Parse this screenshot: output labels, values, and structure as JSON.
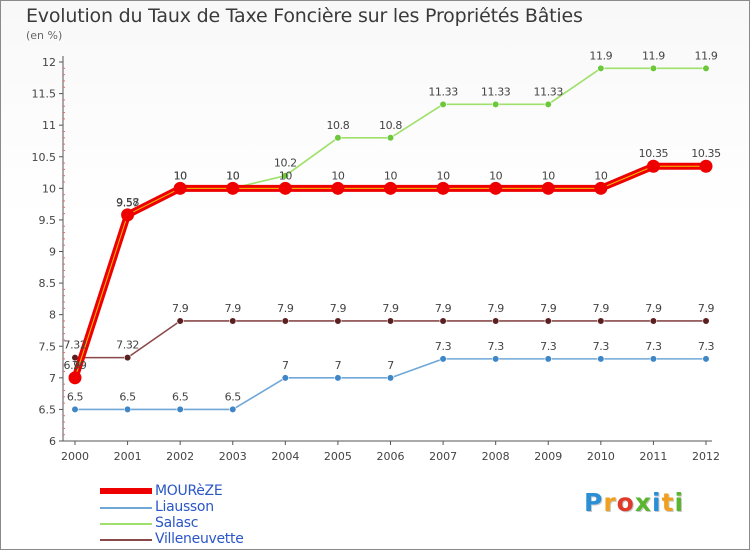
{
  "page": {
    "title": "Evolution du Taux de Taxe Foncière sur les Propriétés Bâties",
    "subtitle": "(en %)"
  },
  "chart_data": {
    "type": "line",
    "title": "Evolution du Taux de Taxe Foncière sur les Propriétés Bâties",
    "subtitle": "(en %)",
    "xlabel": "",
    "ylabel": "",
    "x": [
      "2000",
      "2001",
      "2002",
      "2003",
      "2004",
      "2005",
      "2006",
      "2007",
      "2008",
      "2009",
      "2010",
      "2011",
      "2012"
    ],
    "ylim": [
      6,
      12
    ],
    "yticks": [
      "6",
      "6.5",
      "7",
      "7.5",
      "8",
      "8.5",
      "9",
      "9.5",
      "10",
      "10.5",
      "11",
      "11.5",
      "12"
    ],
    "grid": false,
    "legend_position": "bottom-left",
    "series": [
      {
        "name": "MOURèZE",
        "color": "#ee0000",
        "marker": "#ee0000",
        "emphasis": true,
        "values": [
          7,
          9.58,
          10,
          10,
          10,
          10,
          10,
          10,
          10,
          10,
          10,
          10.35,
          10.35
        ],
        "labels": [
          "6.99",
          "9.58",
          "10",
          "10",
          "10",
          "10",
          "10",
          "10",
          "10",
          "10",
          "10",
          "10.35",
          "10.35"
        ]
      },
      {
        "name": "Liausson",
        "color": "#6fa7d7",
        "marker": "#3f86c7",
        "values": [
          6.5,
          6.5,
          6.5,
          6.5,
          7,
          7,
          7,
          7.3,
          7.3,
          7.3,
          7.3,
          7.3,
          7.3
        ],
        "labels": [
          "6.5",
          "6.5",
          "6.5",
          "6.5",
          "7",
          "7",
          "7",
          "7.3",
          "7.3",
          "7.3",
          "7.3",
          "7.3",
          "7.3"
        ]
      },
      {
        "name": "Salasc",
        "color": "#9fe06a",
        "marker": "#6cc73a",
        "values": [
          7,
          9.57,
          10,
          10,
          10.2,
          10.8,
          10.8,
          11.33,
          11.33,
          11.33,
          11.9,
          11.9,
          11.9
        ],
        "labels": [
          "7",
          "9.57",
          "10",
          "10",
          "10.2",
          "10.8",
          "10.8",
          "11.33",
          "11.33",
          "11.33",
          "11.9",
          "11.9",
          "11.9"
        ]
      },
      {
        "name": "Villeneuvette",
        "color": "#8a4a4a",
        "marker": "#5c1f1f",
        "values": [
          7.32,
          7.32,
          7.9,
          7.9,
          7.9,
          7.9,
          7.9,
          7.9,
          7.9,
          7.9,
          7.9,
          7.9,
          7.9
        ],
        "labels": [
          "7.32",
          "7.32",
          "7.9",
          "7.9",
          "7.9",
          "7.9",
          "7.9",
          "7.9",
          "7.9",
          "7.9",
          "7.9",
          "7.9",
          "7.9"
        ]
      }
    ]
  },
  "logo": {
    "letters": [
      "P",
      "r",
      "o",
      "x",
      "i",
      "t",
      "i"
    ],
    "colors": [
      "#2a8fd4",
      "#f0a020",
      "#e03a2a",
      "#5ab52f",
      "#2a8fd4",
      "#f0a020",
      "#5ab52f"
    ]
  }
}
